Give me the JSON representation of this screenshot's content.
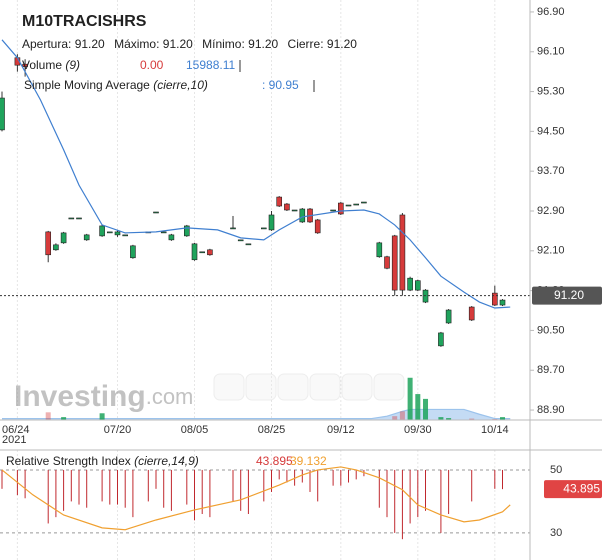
{
  "chart_data": {
    "type": "candlestick",
    "title": "M10TRACISHRS",
    "quote": [
      {
        "label": "Apertura:",
        "value": "91.20"
      },
      {
        "label": "Máximo:",
        "value": "91.20"
      },
      {
        "label": "Mínimo:",
        "value": "91.20"
      },
      {
        "label": "Cierre:",
        "value": "91.20"
      }
    ],
    "volume_legend": {
      "name": "Volume",
      "params": "(9)",
      "value": "0.00",
      "average": "15988.11"
    },
    "sma_legend": {
      "name": "Simple Moving Average",
      "params": "(cierre,10)",
      "value": ": 90.95"
    },
    "watermark": [
      "Investing",
      ".com"
    ],
    "up_color": "#1fa35c",
    "down_color": "#d63b3b",
    "xlim": [
      -0.26,
      68.57
    ],
    "ylim": [
      88.7,
      97.14
    ],
    "yticks": [
      {
        "value": 96.9,
        "label": "96.90"
      },
      {
        "value": 96.1,
        "label": "96.10"
      },
      {
        "value": 95.3,
        "label": "95.30"
      },
      {
        "value": 94.5,
        "label": "94.50"
      },
      {
        "value": 93.7,
        "label": "93.70"
      },
      {
        "value": 92.9,
        "label": "92.90"
      },
      {
        "value": 92.1,
        "label": "92.10"
      },
      {
        "value": 91.3,
        "label": "91.30"
      },
      {
        "value": 90.5,
        "label": "90.50"
      },
      {
        "value": 89.7,
        "label": "89.70"
      },
      {
        "value": 88.9,
        "label": "88.90"
      }
    ],
    "xticks": [
      {
        "value": 2,
        "label": "06/24"
      },
      {
        "value": 15,
        "label": "07/20"
      },
      {
        "value": 25,
        "label": "08/05"
      },
      {
        "value": 35,
        "label": "08/25"
      },
      {
        "value": 44,
        "label": "09/12"
      },
      {
        "value": 54,
        "label": "09/30"
      },
      {
        "value": 64,
        "label": "10/14"
      }
    ],
    "year_label": "2021",
    "last": 91.2,
    "last_label": "91.20",
    "candles": {
      "x": [
        0,
        2,
        3,
        6,
        7,
        8,
        9,
        10,
        11,
        13,
        14,
        15,
        16,
        17,
        19,
        20,
        21,
        22,
        24,
        25,
        26,
        27,
        30,
        31,
        32,
        34,
        35,
        36,
        37,
        38,
        39,
        40,
        41,
        43,
        44,
        45,
        46,
        47,
        49,
        50,
        51,
        52,
        53,
        54,
        55,
        57,
        58,
        61,
        64,
        65
      ],
      "open": [
        94.53,
        95.98,
        95.85,
        92.48,
        92.12,
        92.26,
        92.76,
        92.76,
        92.32,
        92.4,
        92.48,
        92.42,
        92.42,
        91.96,
        92.48,
        92.88,
        92.48,
        92.32,
        92.4,
        91.92,
        92.08,
        92.12,
        92.56,
        92.32,
        92.24,
        92.56,
        92.52,
        93.18,
        93.04,
        92.92,
        92.68,
        92.94,
        92.72,
        92.92,
        93.06,
        93.02,
        93.04,
        93.08,
        91.98,
        91.98,
        92.4,
        92.82,
        91.31,
        91.31,
        91.07,
        90.19,
        90.65,
        90.97,
        91.25,
        91.01
      ],
      "high": [
        95.3,
        96.05,
        95.95,
        92.5,
        92.25,
        92.48,
        92.76,
        92.76,
        92.44,
        92.62,
        92.48,
        92.52,
        92.42,
        92.22,
        92.48,
        92.88,
        92.48,
        92.44,
        92.62,
        92.26,
        92.08,
        92.14,
        92.8,
        92.32,
        92.24,
        92.56,
        92.9,
        93.2,
        93.06,
        92.92,
        92.96,
        92.96,
        92.74,
        92.92,
        93.08,
        93.02,
        93.04,
        93.08,
        92.28,
        92.0,
        92.42,
        92.86,
        91.58,
        91.52,
        91.33,
        90.47,
        90.93,
        90.99,
        91.4,
        91.13
      ],
      "low": [
        94.5,
        95.7,
        95.6,
        91.87,
        92.1,
        92.24,
        92.76,
        92.76,
        92.3,
        92.38,
        92.48,
        92.38,
        92.42,
        91.94,
        92.48,
        92.88,
        92.48,
        92.3,
        92.38,
        91.9,
        92.08,
        92.0,
        92.56,
        92.32,
        92.24,
        92.56,
        92.5,
        92.98,
        92.9,
        92.92,
        92.66,
        92.66,
        92.44,
        92.92,
        92.82,
        93.02,
        93.04,
        93.08,
        91.96,
        91.73,
        91.2,
        91.2,
        91.29,
        91.29,
        91.05,
        90.17,
        90.63,
        90.69,
        90.99,
        90.99
      ],
      "close": [
        95.17,
        95.83,
        95.8,
        92.02,
        92.22,
        92.46,
        92.76,
        92.76,
        92.42,
        92.6,
        92.48,
        92.48,
        92.42,
        92.2,
        92.48,
        92.88,
        92.48,
        92.42,
        92.6,
        92.24,
        92.08,
        92.02,
        92.56,
        92.32,
        92.24,
        92.56,
        92.82,
        93.0,
        92.92,
        92.92,
        92.94,
        92.68,
        92.46,
        92.92,
        92.84,
        93.02,
        93.04,
        93.08,
        92.26,
        91.75,
        91.31,
        91.31,
        91.55,
        91.5,
        91.31,
        90.45,
        90.91,
        90.71,
        91.01,
        91.11
      ]
    },
    "sma": {
      "color": "#3f7fd0",
      "x": [
        0,
        2,
        5,
        8,
        10,
        13,
        16,
        20,
        24,
        28,
        31,
        34,
        36,
        39,
        44,
        47,
        49,
        51,
        53,
        55,
        57,
        60,
        62,
        64,
        66
      ],
      "values": [
        96.34,
        95.98,
        95.13,
        94.13,
        93.42,
        92.62,
        92.46,
        92.48,
        92.56,
        92.52,
        92.36,
        92.32,
        92.52,
        92.78,
        92.9,
        92.92,
        92.84,
        92.62,
        92.32,
        91.96,
        91.59,
        91.27,
        91.07,
        90.95,
        90.97
      ]
    },
    "volume": {
      "ylim": [
        0,
        50000
      ],
      "x": [
        6,
        8,
        13,
        51,
        52,
        53,
        54,
        55,
        57,
        58,
        61,
        64,
        65
      ],
      "values": [
        8000,
        3000,
        7000,
        4000,
        9000,
        44000,
        27000,
        22000,
        3000,
        2000,
        1500,
        1000,
        3000
      ],
      "ma_color": "#9cc3ec",
      "ma_x": [
        0,
        10,
        20,
        30,
        40,
        48,
        50,
        52,
        53,
        55,
        57,
        60,
        62,
        64,
        66
      ],
      "ma_values": [
        1500,
        1500,
        1500,
        1500,
        1500,
        1500,
        4000,
        9000,
        11000,
        11000,
        11000,
        11000,
        6000,
        1500,
        1500
      ]
    },
    "rsi": {
      "name": "Relative Strength Index",
      "params": "(cierre,14,9)",
      "value": 43.895,
      "signal_value": 39.132,
      "color": "#c0282e",
      "signal_color": "#f0a030",
      "ylim": [
        25.2,
        55.7
      ],
      "yticks": [
        50,
        30
      ],
      "x": [
        0,
        2,
        3,
        6,
        7,
        8,
        9,
        10,
        11,
        13,
        14,
        15,
        16,
        17,
        19,
        20,
        21,
        22,
        24,
        25,
        26,
        27,
        30,
        31,
        32,
        34,
        35,
        36,
        37,
        38,
        39,
        40,
        41,
        43,
        44,
        45,
        46,
        47,
        49,
        50,
        51,
        52,
        53,
        54,
        55,
        57,
        58,
        61,
        64,
        65
      ],
      "values": [
        44,
        42,
        41,
        33,
        35,
        37,
        40,
        39,
        38,
        40,
        39,
        39,
        38,
        35,
        40,
        44,
        38,
        37,
        39,
        34,
        36,
        35,
        40,
        37,
        36,
        40,
        43,
        47,
        46,
        45,
        46,
        43,
        40,
        45,
        45,
        46,
        47,
        48,
        38,
        35,
        30,
        28,
        33,
        35,
        37,
        30,
        36,
        40,
        44,
        43.9
      ],
      "signal_x": [
        0,
        4,
        8,
        13,
        16,
        20,
        25,
        31,
        36,
        39,
        41,
        44,
        46,
        49,
        52,
        54,
        57,
        60,
        62,
        65,
        66
      ],
      "signal_values": [
        50,
        42.1,
        35.7,
        31.6,
        31.0,
        34.1,
        37.3,
        40.5,
        45.2,
        48.4,
        50,
        50.95,
        50,
        47.5,
        43.7,
        38.9,
        35.7,
        33.5,
        34.1,
        36.7,
        38.9
      ]
    }
  }
}
